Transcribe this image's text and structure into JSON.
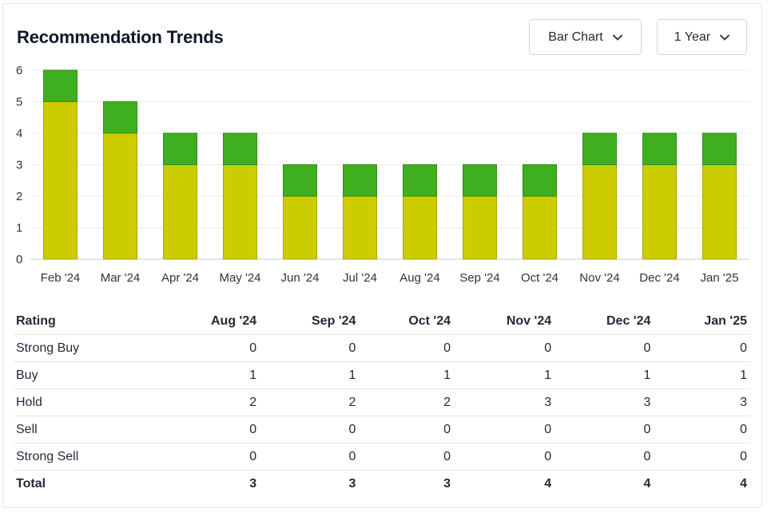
{
  "title": "Recommendation Trends",
  "controls": {
    "chart_type": {
      "selected": "Bar Chart",
      "icon": "chevron-down-icon"
    },
    "time_range": {
      "selected": "1 Year",
      "icon": "chevron-down-icon"
    }
  },
  "colors": {
    "buy": "#3fae1f",
    "hold": "#cccc00",
    "buy_stroke": "#2f8f16",
    "hold_stroke": "#a8a800"
  },
  "chart_data": {
    "type": "bar",
    "stacked": true,
    "categories": [
      "Feb '24",
      "Mar '24",
      "Apr '24",
      "May '24",
      "Jun '24",
      "Jul '24",
      "Aug '24",
      "Sep '24",
      "Oct '24",
      "Nov '24",
      "Dec '24",
      "Jan '25"
    ],
    "series": [
      {
        "key": "hold",
        "values": [
          5,
          4,
          3,
          3,
          2,
          2,
          2,
          2,
          2,
          3,
          3,
          3
        ]
      },
      {
        "key": "buy",
        "values": [
          1,
          1,
          1,
          1,
          1,
          1,
          1,
          1,
          1,
          1,
          1,
          1
        ]
      }
    ],
    "ylim": [
      0,
      6
    ],
    "yticks": [
      0,
      1,
      2,
      3,
      4,
      5,
      6
    ],
    "grid": true
  },
  "table": {
    "headers": [
      "Rating",
      "Aug '24",
      "Sep '24",
      "Oct '24",
      "Nov '24",
      "Dec '24",
      "Jan '25"
    ],
    "rows": [
      {
        "label": "Strong Buy",
        "values": [
          0,
          0,
          0,
          0,
          0,
          0
        ]
      },
      {
        "label": "Buy",
        "values": [
          1,
          1,
          1,
          1,
          1,
          1
        ]
      },
      {
        "label": "Hold",
        "values": [
          2,
          2,
          2,
          3,
          3,
          3
        ]
      },
      {
        "label": "Sell",
        "values": [
          0,
          0,
          0,
          0,
          0,
          0
        ]
      },
      {
        "label": "Strong Sell",
        "values": [
          0,
          0,
          0,
          0,
          0,
          0
        ]
      }
    ],
    "total": {
      "label": "Total",
      "values": [
        3,
        3,
        3,
        4,
        4,
        4
      ]
    }
  }
}
